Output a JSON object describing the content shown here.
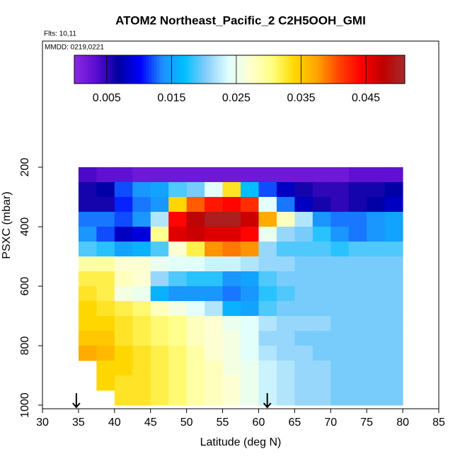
{
  "chart_data": {
    "type": "heatmap",
    "title": "ATOM2 Northeast_Pacific_2 C2H5OOH_GMI",
    "subtitle": "Flts: 10,11",
    "annotation": "MMDD: 0219,0221",
    "xlabel": "Latitude (deg N)",
    "ylabel": "PSXC (mbar)",
    "xlim": [
      30,
      85
    ],
    "xticks": [
      30,
      35,
      40,
      45,
      50,
      55,
      60,
      65,
      70,
      75,
      80,
      85
    ],
    "ylim": [
      1012,
      -224
    ],
    "yticks": [
      200,
      400,
      600,
      800,
      1000
    ],
    "x_edges": [
      35,
      37.5,
      40,
      42.5,
      45,
      47.5,
      50,
      52.5,
      55,
      57.5,
      60,
      62.5,
      65,
      67.5,
      70,
      72.5,
      75,
      77.5,
      80
    ],
    "y_edges": [
      200,
      250,
      300,
      350,
      400,
      450,
      500,
      550,
      600,
      650,
      700,
      750,
      800,
      850,
      900,
      950,
      1000
    ],
    "values": [
      [
        0.004,
        0.003,
        0.003,
        0.002,
        0.002,
        0.002,
        0.002,
        0.002,
        0.002,
        0.002,
        0.002,
        0.002,
        0.002,
        0.002,
        0.002,
        0.003,
        0.003,
        0.003
      ],
      [
        0.006,
        0.007,
        0.012,
        0.014,
        0.015,
        0.019,
        0.02,
        0.024,
        0.033,
        0.017,
        0.012,
        0.008,
        0.006,
        0.005,
        0.005,
        0.006,
        0.006,
        0.007
      ],
      [
        0.006,
        0.006,
        0.011,
        0.013,
        0.014,
        0.034,
        0.04,
        0.043,
        0.044,
        0.042,
        0.024,
        0.013,
        0.008,
        0.006,
        0.005,
        0.006,
        0.007,
        0.008
      ],
      [
        0.013,
        0.013,
        0.012,
        0.014,
        0.022,
        0.044,
        0.048,
        0.05,
        0.05,
        0.047,
        0.037,
        0.028,
        0.022,
        0.014,
        0.013,
        0.013,
        0.014,
        0.015
      ],
      [
        0.014,
        0.012,
        0.008,
        0.009,
        0.03,
        0.046,
        0.047,
        0.046,
        0.046,
        0.044,
        0.025,
        0.021,
        0.02,
        0.018,
        0.014,
        0.013,
        0.014,
        0.015
      ],
      [
        0.019,
        0.018,
        0.015,
        0.016,
        0.019,
        0.027,
        0.032,
        0.038,
        0.039,
        0.038,
        0.021,
        0.019,
        0.019,
        0.019,
        0.018,
        0.019,
        0.019,
        0.019
      ],
      [
        0.029,
        0.029,
        0.027,
        0.027,
        0.025,
        0.024,
        0.024,
        0.023,
        0.023,
        0.022,
        0.021,
        0.021,
        0.02,
        0.02,
        0.02,
        0.02,
        0.02,
        0.02
      ],
      [
        0.032,
        0.032,
        0.028,
        0.027,
        0.021,
        0.019,
        0.018,
        0.018,
        0.014,
        0.015,
        0.019,
        0.02,
        0.02,
        0.02,
        0.02,
        0.02,
        0.02,
        0.02
      ],
      [
        0.033,
        0.032,
        0.026,
        0.025,
        0.016,
        0.014,
        0.014,
        0.014,
        0.013,
        0.014,
        0.018,
        0.019,
        0.02,
        0.02,
        0.02,
        0.02,
        0.02,
        0.02
      ],
      [
        0.034,
        0.033,
        0.032,
        0.031,
        0.028,
        0.026,
        0.024,
        0.022,
        0.016,
        0.015,
        0.019,
        0.02,
        0.02,
        0.02,
        0.02,
        0.02,
        0.02,
        0.02
      ],
      [
        0.034,
        0.034,
        0.033,
        0.032,
        0.031,
        0.03,
        0.028,
        0.027,
        0.025,
        0.024,
        0.022,
        0.021,
        0.021,
        0.021,
        0.02,
        0.02,
        0.02,
        0.02
      ],
      [
        0.035,
        0.035,
        0.033,
        0.032,
        0.031,
        0.03,
        0.028,
        0.027,
        0.026,
        0.024,
        0.021,
        0.021,
        0.02,
        0.02,
        0.02,
        0.02,
        0.02,
        0.02
      ],
      [
        0.037,
        0.036,
        0.034,
        0.033,
        0.032,
        0.031,
        0.029,
        0.027,
        0.026,
        0.024,
        0.022,
        0.021,
        0.021,
        0.02,
        0.02,
        0.02,
        0.02,
        0.02
      ],
      [
        null,
        0.034,
        0.034,
        0.033,
        0.032,
        0.031,
        0.029,
        0.028,
        0.026,
        0.025,
        0.023,
        0.022,
        0.021,
        0.021,
        0.02,
        0.02,
        0.02,
        0.02
      ],
      [
        null,
        0.034,
        0.033,
        0.033,
        0.032,
        0.031,
        0.029,
        0.028,
        0.027,
        0.025,
        0.023,
        0.022,
        0.021,
        0.021,
        0.02,
        0.02,
        0.02,
        0.02
      ],
      [
        null,
        null,
        0.033,
        0.033,
        0.032,
        0.031,
        0.029,
        0.028,
        0.027,
        0.025,
        0.023,
        0.022,
        0.021,
        0.021,
        0.02,
        0.02,
        0.02,
        0.02
      ]
    ],
    "clim": [
      0,
      0.051
    ],
    "cticks": [
      0.005,
      0.015,
      0.025,
      0.035,
      0.045
    ],
    "colorscale": [
      "#8a2be2",
      "#5a0cd0",
      "#0000a0",
      "#0000ff",
      "#1e90ff",
      "#00bfff",
      "#87cefa",
      "#e0ffff",
      "#ffffd0",
      "#ffff80",
      "#ffd700",
      "#ffa500",
      "#ff4500",
      "#ff0000",
      "#c00000",
      "#a52a2a"
    ],
    "arrows_x": [
      34.7,
      61.2
    ]
  }
}
